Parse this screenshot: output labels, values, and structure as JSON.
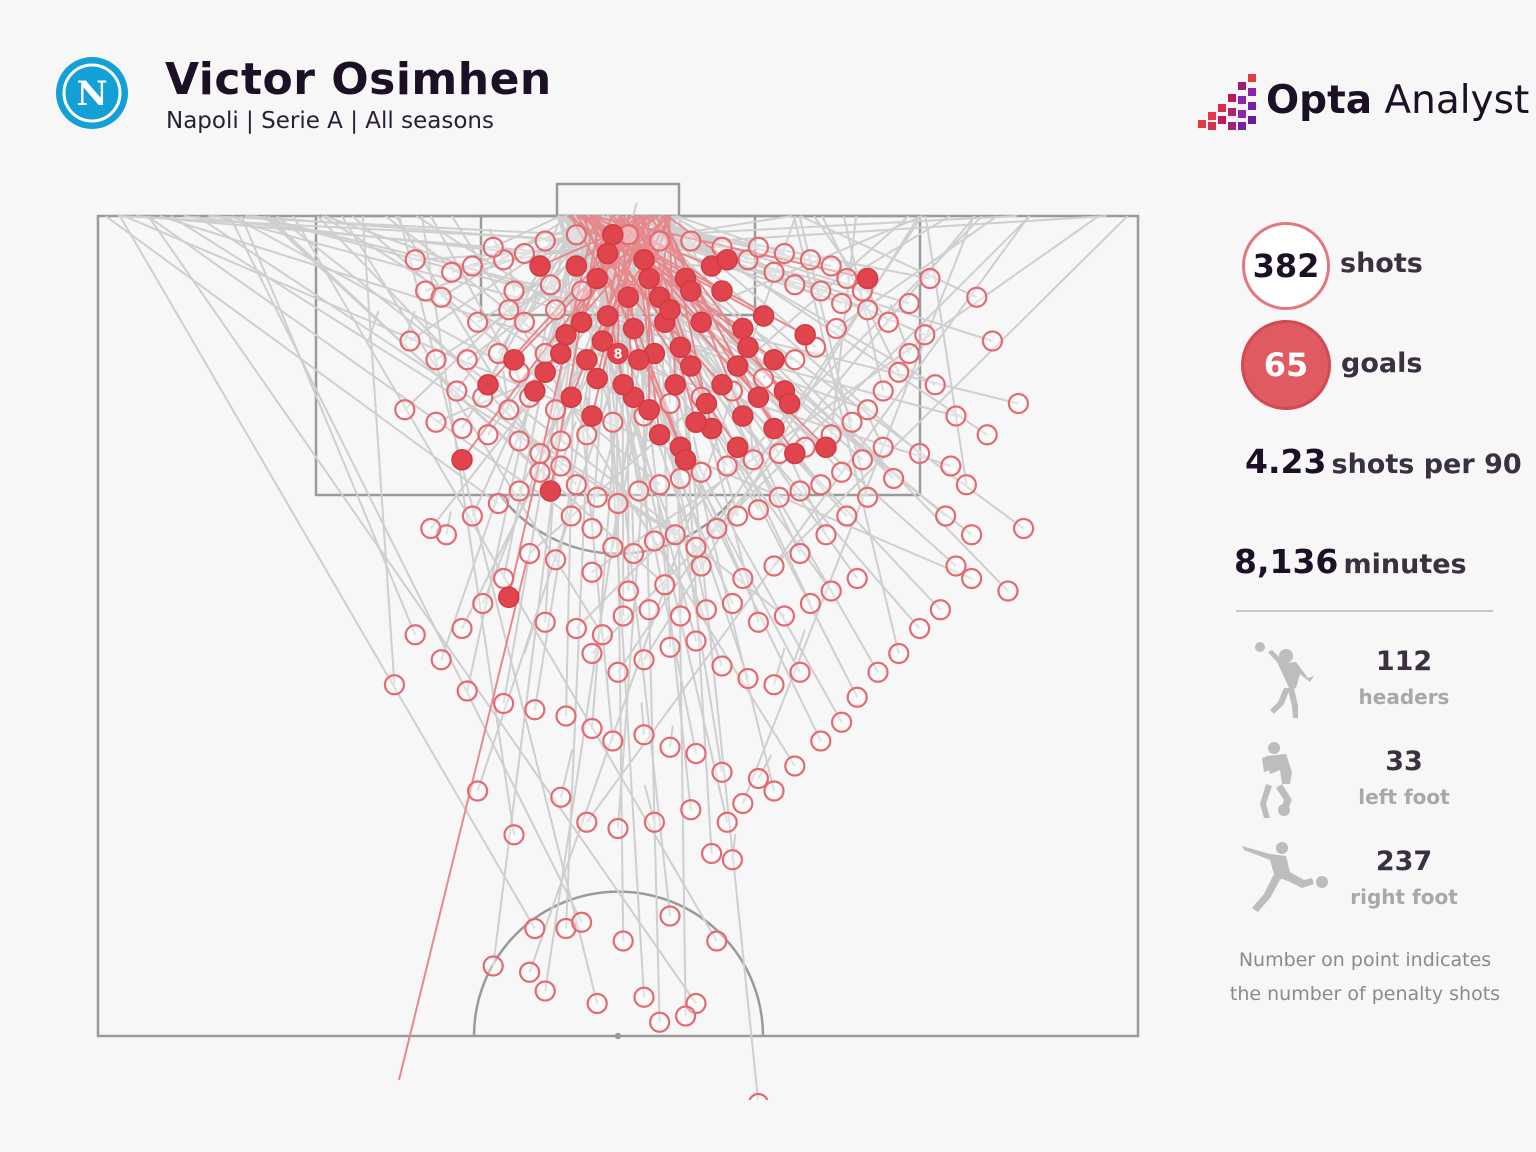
{
  "header": {
    "player_name": "Victor Osimhen",
    "subtitle": "Napoli | Serie A | All seasons",
    "club_badge_letter": "N",
    "club_badge_icon": "napoli-badge-icon"
  },
  "brand": {
    "name_bold": "Opta",
    "name_rest": " Analyst",
    "icon": "opta-bars-icon",
    "colors": [
      "#e63946",
      "#c2185b",
      "#8e24aa"
    ]
  },
  "stats": {
    "shots_value": "382",
    "shots_label": "shots",
    "goals_value": "65",
    "goals_label": "goals",
    "shots_per90_value": "4.23",
    "shots_per90_label": "shots per 90",
    "minutes_value": "8,136",
    "minutes_label": "minutes",
    "headers_value": "112",
    "headers_label": "headers",
    "left_foot_value": "33",
    "left_foot_label": "left foot",
    "right_foot_value": "237",
    "right_foot_label": "right foot"
  },
  "note": {
    "line1": "Number on point indicates",
    "line2": "the number of penalty shots"
  },
  "colors": {
    "goal": "#e0444c",
    "shot": "#e36a70",
    "miss_line": "#cfcfcf",
    "pitch_line": "#9a9a9a",
    "text_dark": "#1b1026"
  },
  "chart_data": {
    "type": "scatter",
    "description_units": "shot origins in pitch units (x: 0-100 across, y: metres from goal line)",
    "penalty": {
      "x": 50,
      "y": 11,
      "count": "8"
    },
    "goals": [
      [
        49.5,
        1.5
      ],
      [
        42.5,
        4
      ],
      [
        46,
        4
      ],
      [
        48,
        5
      ],
      [
        53,
        5
      ],
      [
        56.5,
        5
      ],
      [
        59,
        4
      ],
      [
        60.5,
        3.5
      ],
      [
        51,
        6.5
      ],
      [
        54,
        6.5
      ],
      [
        57,
        6
      ],
      [
        46.5,
        8.5
      ],
      [
        49,
        8
      ],
      [
        51.5,
        9
      ],
      [
        54.5,
        8.5
      ],
      [
        58,
        8.5
      ],
      [
        62,
        9
      ],
      [
        44.5,
        11
      ],
      [
        47,
        11.5
      ],
      [
        50,
        11
      ],
      [
        53.5,
        11
      ],
      [
        57,
        12
      ],
      [
        61.5,
        12
      ],
      [
        65,
        11.5
      ],
      [
        40,
        11.5
      ],
      [
        43,
        12.5
      ],
      [
        48,
        13
      ],
      [
        55.5,
        13.5
      ],
      [
        60,
        13.5
      ],
      [
        63.5,
        14.5
      ],
      [
        66,
        14
      ],
      [
        37.5,
        13.5
      ],
      [
        51.5,
        14.5
      ],
      [
        58.5,
        15
      ],
      [
        62,
        16
      ],
      [
        65,
        17
      ],
      [
        56,
        18.5
      ],
      [
        61.5,
        18.5
      ],
      [
        67,
        19
      ],
      [
        70,
        18.5
      ],
      [
        35,
        19.5
      ],
      [
        56.5,
        19.5
      ],
      [
        43.5,
        22
      ],
      [
        68,
        9.5
      ],
      [
        74,
        5
      ],
      [
        49,
        3
      ],
      [
        52.5,
        3.5
      ],
      [
        45,
        9.5
      ],
      [
        50.5,
        13.5
      ],
      [
        56,
        10.5
      ],
      [
        53,
        15.5
      ],
      [
        59,
        17
      ],
      [
        47.5,
        16
      ],
      [
        64,
        8
      ],
      [
        39.5,
        30.5
      ],
      [
        55,
        7.5
      ],
      [
        60,
        6
      ],
      [
        48.5,
        10
      ],
      [
        52,
        11.5
      ],
      [
        62.5,
        10.5
      ],
      [
        45.5,
        14.5
      ],
      [
        57.5,
        16.5
      ],
      [
        66.5,
        15
      ],
      [
        42,
        14
      ],
      [
        54,
        17.5
      ]
    ],
    "shots": [
      [
        30.5,
        3.5
      ],
      [
        34,
        4.5
      ],
      [
        39,
        3.5
      ],
      [
        31.5,
        6
      ],
      [
        33,
        6.5
      ],
      [
        40,
        6
      ],
      [
        41,
        8.5
      ],
      [
        36.5,
        8.5
      ],
      [
        30,
        10
      ],
      [
        32.5,
        11.5
      ],
      [
        35.5,
        11.5
      ],
      [
        38.5,
        11
      ],
      [
        40.5,
        12.5
      ],
      [
        43,
        11
      ],
      [
        34.5,
        14
      ],
      [
        37,
        14.5
      ],
      [
        39.5,
        15.5
      ],
      [
        41.5,
        14.5
      ],
      [
        44,
        15.5
      ],
      [
        29.5,
        15.5
      ],
      [
        32.5,
        16.5
      ],
      [
        35,
        17
      ],
      [
        37.5,
        17.5
      ],
      [
        40.5,
        18
      ],
      [
        42.5,
        19
      ],
      [
        44.5,
        20
      ],
      [
        46,
        21.5
      ],
      [
        48,
        22.5
      ],
      [
        50,
        23
      ],
      [
        52,
        22
      ],
      [
        54,
        21.5
      ],
      [
        56,
        21
      ],
      [
        58,
        20.5
      ],
      [
        60.5,
        20
      ],
      [
        63,
        19.5
      ],
      [
        65.5,
        19
      ],
      [
        68,
        18.5
      ],
      [
        70.5,
        17.5
      ],
      [
        72.5,
        16.5
      ],
      [
        74,
        15.5
      ],
      [
        75.5,
        14
      ],
      [
        77,
        12.5
      ],
      [
        78,
        11
      ],
      [
        79.5,
        9.5
      ],
      [
        76,
        8.5
      ],
      [
        74,
        7.5
      ],
      [
        71.5,
        7
      ],
      [
        69.5,
        6
      ],
      [
        67,
        5.5
      ],
      [
        65,
        4.5
      ],
      [
        62.5,
        3.5
      ],
      [
        60,
        2.5
      ],
      [
        57,
        2
      ],
      [
        54,
        2
      ],
      [
        51,
        1.5
      ],
      [
        46,
        1.5
      ],
      [
        43,
        2
      ],
      [
        41,
        3
      ],
      [
        38,
        2.5
      ],
      [
        36,
        4
      ],
      [
        63.5,
        2.5
      ],
      [
        66,
        3
      ],
      [
        68.5,
        3.5
      ],
      [
        70.5,
        4
      ],
      [
        72,
        5
      ],
      [
        73.5,
        6
      ],
      [
        71,
        9
      ],
      [
        69,
        10.5
      ],
      [
        67,
        11.5
      ],
      [
        64,
        13
      ],
      [
        61,
        14
      ],
      [
        58,
        14.5
      ],
      [
        55,
        15
      ],
      [
        52.5,
        16
      ],
      [
        49.5,
        16.5
      ],
      [
        47,
        17.5
      ],
      [
        44.5,
        18
      ],
      [
        42.5,
        20.5
      ],
      [
        40.5,
        22
      ],
      [
        38.5,
        23
      ],
      [
        36,
        24
      ],
      [
        33.5,
        25.5
      ],
      [
        45.5,
        24
      ],
      [
        47.5,
        25
      ],
      [
        49.5,
        26.5
      ],
      [
        51.5,
        27
      ],
      [
        53.5,
        26
      ],
      [
        55.5,
        25.5
      ],
      [
        57.5,
        26.5
      ],
      [
        59.5,
        25
      ],
      [
        61.5,
        24
      ],
      [
        63.5,
        23.5
      ],
      [
        65.5,
        22.5
      ],
      [
        67.5,
        22
      ],
      [
        69.5,
        21.5
      ],
      [
        71.5,
        20.5
      ],
      [
        73.5,
        19.5
      ],
      [
        75.5,
        18.5
      ],
      [
        76.5,
        21
      ],
      [
        74,
        22.5
      ],
      [
        72,
        24
      ],
      [
        70,
        25.5
      ],
      [
        67.5,
        27
      ],
      [
        65,
        28
      ],
      [
        62,
        29
      ],
      [
        58,
        28
      ],
      [
        54.5,
        29.5
      ],
      [
        51,
        30
      ],
      [
        47.5,
        28.5
      ],
      [
        44,
        27.5
      ],
      [
        41.5,
        27
      ],
      [
        39,
        29
      ],
      [
        37,
        31
      ],
      [
        35,
        33
      ],
      [
        33,
        35.5
      ],
      [
        43,
        32.5
      ],
      [
        46,
        33
      ],
      [
        48.5,
        33.5
      ],
      [
        50.5,
        32
      ],
      [
        53,
        31.5
      ],
      [
        56,
        32
      ],
      [
        58.5,
        31.5
      ],
      [
        61,
        31
      ],
      [
        63.5,
        32.5
      ],
      [
        66,
        32
      ],
      [
        68.5,
        31
      ],
      [
        70.5,
        30
      ],
      [
        73,
        29
      ],
      [
        47.5,
        35
      ],
      [
        50,
        36.5
      ],
      [
        52.5,
        35.5
      ],
      [
        55,
        34.5
      ],
      [
        57.5,
        34
      ],
      [
        60,
        36
      ],
      [
        62.5,
        37
      ],
      [
        65,
        37.5
      ],
      [
        67.5,
        36.5
      ],
      [
        35.5,
        38
      ],
      [
        39,
        39
      ],
      [
        42,
        39.5
      ],
      [
        45,
        40
      ],
      [
        47.5,
        41
      ],
      [
        49.5,
        42
      ],
      [
        52.5,
        41.5
      ],
      [
        55,
        42.5
      ],
      [
        57.5,
        43
      ],
      [
        60,
        44.5
      ],
      [
        63.5,
        45
      ],
      [
        44.5,
        46.5
      ],
      [
        47,
        48.5
      ],
      [
        50,
        49
      ],
      [
        53.5,
        48.5
      ],
      [
        57,
        47.5
      ],
      [
        60.5,
        48.5
      ],
      [
        62,
        47
      ],
      [
        65,
        46
      ],
      [
        67,
        44
      ],
      [
        69.5,
        42
      ],
      [
        71.5,
        40.5
      ],
      [
        73,
        38.5
      ],
      [
        75,
        36.5
      ],
      [
        77,
        35
      ],
      [
        79,
        33
      ],
      [
        81,
        31.5
      ],
      [
        82.5,
        28
      ],
      [
        84,
        25.5
      ],
      [
        81.5,
        24
      ],
      [
        83.5,
        21.5
      ],
      [
        85.5,
        17.5
      ],
      [
        82.5,
        16
      ],
      [
        88.5,
        15
      ],
      [
        80.5,
        13.5
      ],
      [
        78,
        7
      ],
      [
        80,
        5
      ],
      [
        84.5,
        6.5
      ],
      [
        86,
        10
      ],
      [
        79,
        19
      ],
      [
        82,
        20
      ],
      [
        84,
        29
      ],
      [
        87.5,
        30
      ],
      [
        89,
        25
      ],
      [
        44,
        7.5
      ],
      [
        46.5,
        6
      ],
      [
        39.5,
        7.5
      ],
      [
        43.5,
        5.5
      ],
      [
        32,
        25
      ],
      [
        30.5,
        33.5
      ],
      [
        28.5,
        37.5
      ],
      [
        36.5,
        46
      ],
      [
        40,
        49.5
      ],
      [
        38,
        60
      ],
      [
        43,
        62
      ],
      [
        48,
        63
      ],
      [
        52.5,
        62.5
      ],
      [
        57.5,
        63
      ],
      [
        59.5,
        58
      ],
      [
        55,
        56
      ],
      [
        42,
        57
      ],
      [
        45,
        57
      ],
      [
        50.5,
        58
      ],
      [
        59,
        51
      ],
      [
        61,
        51.5
      ],
      [
        63.5,
        71
      ],
      [
        54,
        64.5
      ],
      [
        46.5,
        56.5
      ],
      [
        41.5,
        60.5
      ],
      [
        56.5,
        64
      ]
    ],
    "extra_origins": [
      [
        29.5,
        10
      ],
      [
        26,
        10
      ],
      [
        41,
        35
      ],
      [
        67,
        35.5
      ]
    ]
  }
}
